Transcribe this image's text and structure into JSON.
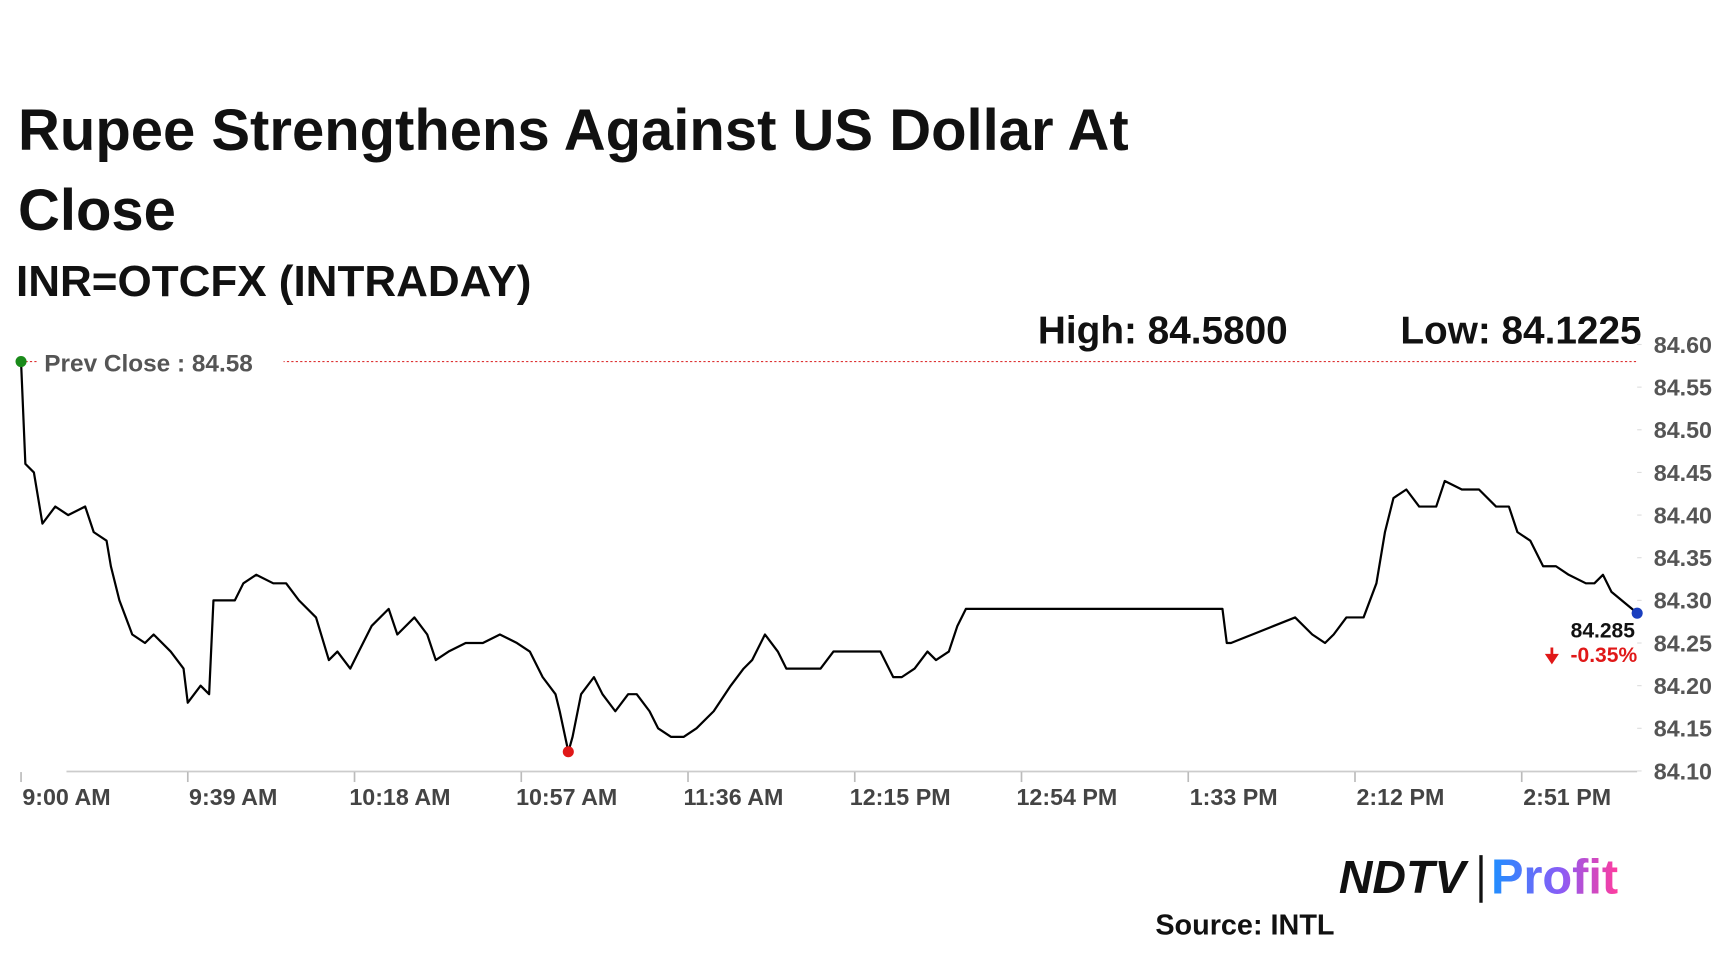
{
  "chart_data": {
    "type": "line",
    "title": "Rupee Strengthens Against US Dollar At Close",
    "subtitle": "INR=OTCFX (INTRADAY)",
    "high_label": "High: 84.5800",
    "low_label": "Low: 84.1225",
    "prev_close": {
      "label": "Prev Close : 84.58",
      "value": 84.58
    },
    "last_label": "84.285",
    "change_label": "-0.35%",
    "source": "Source: INTL",
    "logo": {
      "left": "NDTV",
      "right": "Profit"
    },
    "color": "#000000",
    "x": [
      540,
      541,
      543,
      545,
      548,
      551,
      555,
      557,
      560,
      561,
      563,
      566,
      569,
      571,
      575,
      578,
      579,
      582,
      584,
      585,
      587,
      590,
      592,
      595,
      599,
      602,
      605,
      609,
      612,
      614,
      617,
      619,
      622,
      626,
      628,
      632,
      635,
      637,
      640,
      644,
      648,
      652,
      656,
      659,
      662,
      665,
      666,
      668,
      669,
      671,
      674,
      676,
      679,
      682,
      684,
      687,
      689,
      692,
      695,
      698,
      702,
      706,
      709,
      711,
      714,
      717,
      719,
      723,
      727,
      730,
      733,
      737,
      741,
      744,
      746,
      749,
      752,
      754,
      757,
      759,
      761,
      763,
      821,
      822,
      823,
      828,
      833,
      838,
      842,
      845,
      847,
      850,
      854,
      857,
      859,
      861,
      864,
      867,
      871,
      873,
      877,
      881,
      885,
      888,
      890,
      893,
      896,
      899,
      902,
      906,
      908,
      910,
      912,
      918
    ],
    "values": [
      84.58,
      84.46,
      84.45,
      84.39,
      84.41,
      84.4,
      84.41,
      84.38,
      84.37,
      84.34,
      84.3,
      84.26,
      84.25,
      84.26,
      84.24,
      84.22,
      84.18,
      84.2,
      84.19,
      84.3,
      84.3,
      84.3,
      84.32,
      84.33,
      84.32,
      84.32,
      84.3,
      84.28,
      84.23,
      84.24,
      84.22,
      84.24,
      84.27,
      84.29,
      84.26,
      84.28,
      84.26,
      84.23,
      84.24,
      84.25,
      84.25,
      84.26,
      84.25,
      84.24,
      84.21,
      84.19,
      84.17,
      84.1225,
      84.14,
      84.19,
      84.21,
      84.19,
      84.17,
      84.19,
      84.19,
      84.17,
      84.15,
      84.14,
      84.14,
      84.15,
      84.17,
      84.2,
      84.22,
      84.23,
      84.26,
      84.24,
      84.22,
      84.22,
      84.22,
      84.24,
      84.24,
      84.24,
      84.24,
      84.21,
      84.21,
      84.22,
      84.24,
      84.23,
      84.24,
      84.27,
      84.29,
      84.29,
      84.29,
      84.25,
      84.25,
      84.26,
      84.27,
      84.28,
      84.26,
      84.25,
      84.26,
      84.28,
      84.28,
      84.32,
      84.38,
      84.42,
      84.43,
      84.41,
      84.41,
      84.44,
      84.43,
      84.43,
      84.41,
      84.41,
      84.38,
      84.37,
      84.34,
      84.34,
      84.33,
      84.32,
      84.32,
      84.33,
      84.31,
      84.285
    ],
    "xlim": [
      540,
      918
    ],
    "xticks": [
      {
        "value": 540,
        "label": "9:00 AM"
      },
      {
        "value": 579,
        "label": "9:39 AM"
      },
      {
        "value": 618,
        "label": "10:18 AM"
      },
      {
        "value": 657,
        "label": "10:57 AM"
      },
      {
        "value": 696,
        "label": "11:36 AM"
      },
      {
        "value": 735,
        "label": "12:15 PM"
      },
      {
        "value": 774,
        "label": "12:54 PM"
      },
      {
        "value": 813,
        "label": "1:33 PM"
      },
      {
        "value": 852,
        "label": "2:12 PM"
      },
      {
        "value": 891,
        "label": "2:51 PM"
      }
    ],
    "ylim": [
      84.1,
      84.6
    ],
    "yticks": [
      {
        "value": 84.1,
        "label": "84.10"
      },
      84.15,
      {
        "value": 84.2,
        "label": "84.20"
      },
      84.25,
      {
        "value": 84.3,
        "label": "84.30"
      },
      84.35,
      {
        "value": 84.4,
        "label": "84.40"
      },
      84.45,
      {
        "value": 84.5,
        "label": "84.50"
      },
      84.55,
      {
        "value": 84.6,
        "label": "84.60"
      }
    ]
  }
}
